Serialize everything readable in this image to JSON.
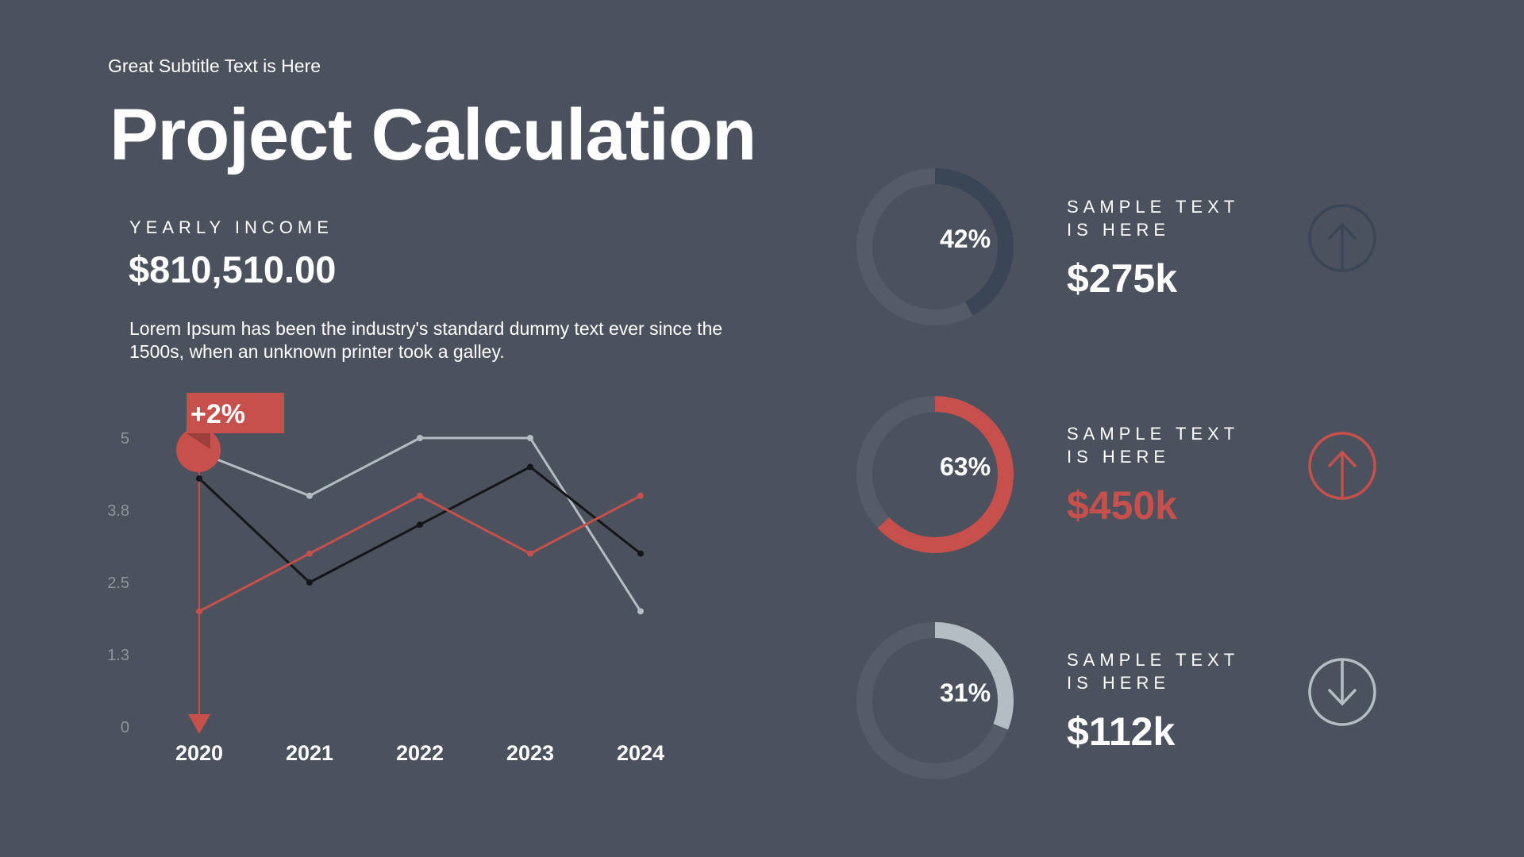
{
  "header": {
    "subtitle": "Great Subtitle Text is Here",
    "title": "Project Calculation"
  },
  "income": {
    "label": "YEARLY INCOME",
    "value": "$810,510.00",
    "description": "Lorem Ipsum has been the industry's standard dummy text ever since the 1500s, when an unknown printer took a galley."
  },
  "colors": {
    "background": "#4b525d",
    "accent": "#c8504c",
    "dark": "#151619",
    "light": "#b4bcc4",
    "navy": "#3a4556",
    "track": "#555c67"
  },
  "chart_data": {
    "type": "line",
    "categories": [
      "2020",
      "2021",
      "2022",
      "2023",
      "2024"
    ],
    "y_ticks": [
      "0",
      "1.3",
      "2.5",
      "3.8",
      "5"
    ],
    "ylim": [
      0,
      5
    ],
    "grid": false,
    "series": [
      {
        "color": "#b4bcc4",
        "values": [
          4.75,
          4.0,
          5.0,
          5.0,
          2.0
        ]
      },
      {
        "color": "#151619",
        "values": [
          4.3,
          2.5,
          3.5,
          4.5,
          3.0
        ]
      },
      {
        "color": "#c8504c",
        "values": [
          2.0,
          3.0,
          4.0,
          3.0,
          4.0
        ]
      }
    ],
    "annotation": {
      "label": "+2%",
      "category": "2020"
    }
  },
  "stats": [
    {
      "percent": 42,
      "percent_label": "42%",
      "label_line1": "SAMPLE TEXT",
      "label_line2": "IS HERE",
      "value": "$275k",
      "arc_color": "#3a4556",
      "value_color": "#ffffff",
      "icon": "arrow-up-circle-icon",
      "icon_color": "#3a4556"
    },
    {
      "percent": 63,
      "percent_label": "63%",
      "label_line1": "SAMPLE TEXT",
      "label_line2": "IS HERE",
      "value": "$450k",
      "arc_color": "#c8504c",
      "value_color": "#c8504c",
      "icon": "arrow-up-circle-icon",
      "icon_color": "#c8504c"
    },
    {
      "percent": 31,
      "percent_label": "31%",
      "label_line1": "SAMPLE TEXT",
      "label_line2": "IS HERE",
      "value": "$112k",
      "arc_color": "#b4bcc4",
      "value_color": "#ffffff",
      "icon": "arrow-down-circle-icon",
      "icon_color": "#b4bcc4"
    }
  ]
}
